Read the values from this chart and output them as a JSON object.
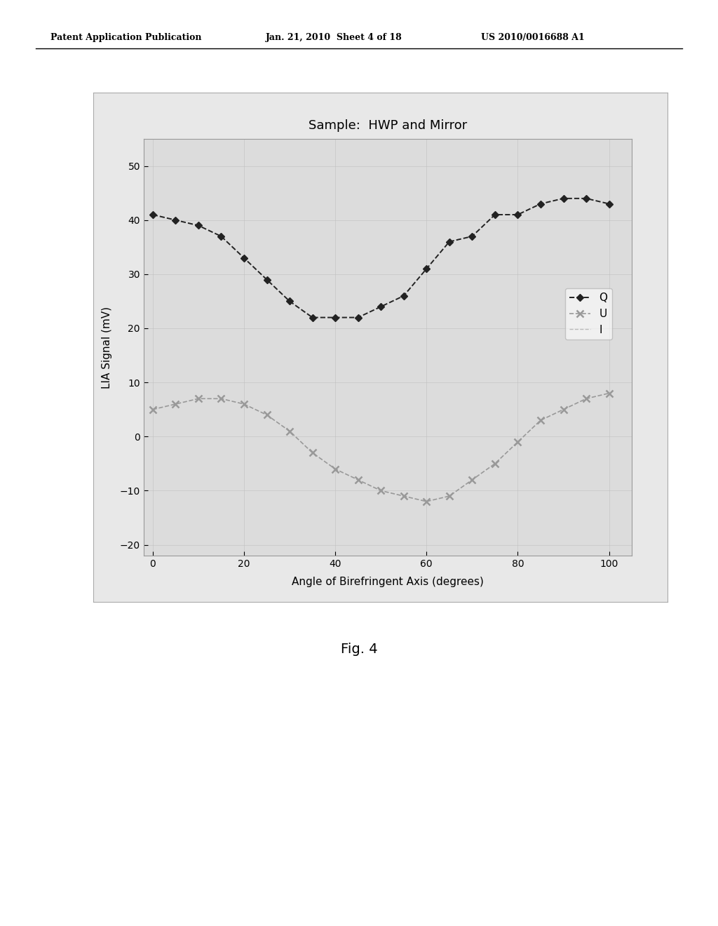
{
  "title": "Sample:  HWP and Mirror",
  "xlabel": "Angle of Birefringent Axis (degrees)",
  "ylabel": "LIA Signal (mV)",
  "xlim": [
    -2,
    105
  ],
  "ylim": [
    -22,
    55
  ],
  "yticks": [
    -20,
    -10,
    0,
    10,
    20,
    30,
    40,
    50
  ],
  "xticks": [
    0,
    20,
    40,
    60,
    80,
    100
  ],
  "Q_x": [
    0,
    5,
    10,
    15,
    20,
    25,
    30,
    35,
    40,
    45,
    50,
    55,
    60,
    65,
    70,
    75,
    80,
    85,
    90,
    95,
    100
  ],
  "Q_y": [
    41,
    40,
    39,
    37,
    33,
    29,
    25,
    22,
    22,
    22,
    24,
    26,
    31,
    36,
    37,
    41,
    41,
    43,
    44,
    44,
    43
  ],
  "U_x": [
    0,
    5,
    10,
    15,
    20,
    25,
    30,
    35,
    40,
    45,
    50,
    55,
    60,
    65,
    70,
    75,
    80,
    85,
    90,
    95,
    100
  ],
  "U_y": [
    5,
    6,
    7,
    7,
    6,
    4,
    1,
    -3,
    -6,
    -8,
    -10,
    -11,
    -12,
    -11,
    -8,
    -5,
    -1,
    3,
    5,
    7,
    8
  ],
  "Q_color": "#222222",
  "U_color": "#999999",
  "plot_bg_color": "#dcdcdc",
  "outer_box_color": "#e8e8e8",
  "page_bg": "#ffffff",
  "fig4_text": "Fig. 4",
  "header_left": "Patent Application Publication",
  "header_mid": "Jan. 21, 2010  Sheet 4 of 18",
  "header_right": "US 2010/0016688 A1"
}
